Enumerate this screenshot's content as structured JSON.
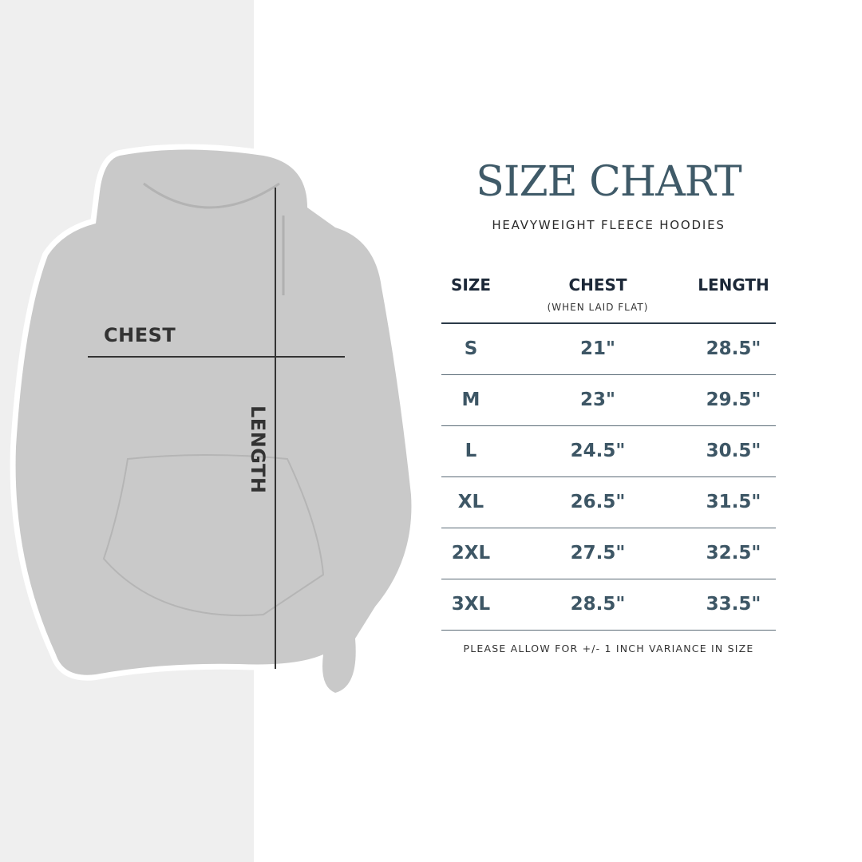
{
  "title": "SIZE CHART",
  "subtitle": "HEAVYWEIGHT FLEECE HOODIES",
  "illustration": {
    "chest_label": "CHEST",
    "length_label": "LENGTH"
  },
  "table": {
    "headers": {
      "size": "SIZE",
      "chest": "CHEST",
      "chest_note": "(WHEN LAID FLAT)",
      "length": "LENGTH"
    },
    "rows": [
      {
        "size": "S",
        "chest": "21\"",
        "length": "28.5\""
      },
      {
        "size": "M",
        "chest": "23\"",
        "length": "29.5\""
      },
      {
        "size": "L",
        "chest": "24.5\"",
        "length": "30.5\""
      },
      {
        "size": "XL",
        "chest": "26.5\"",
        "length": "31.5\""
      },
      {
        "size": "2XL",
        "chest": "27.5\"",
        "length": "32.5\""
      },
      {
        "size": "3XL",
        "chest": "28.5\"",
        "length": "33.5\""
      }
    ]
  },
  "note": "PLEASE ALLOW FOR +/- 1 INCH VARIANCE IN SIZE",
  "colors": {
    "title": "#3f5a68",
    "header": "#1c2838",
    "values": "#3d5665",
    "panel": "#efefef",
    "hoodie": "#c9c9c9"
  }
}
